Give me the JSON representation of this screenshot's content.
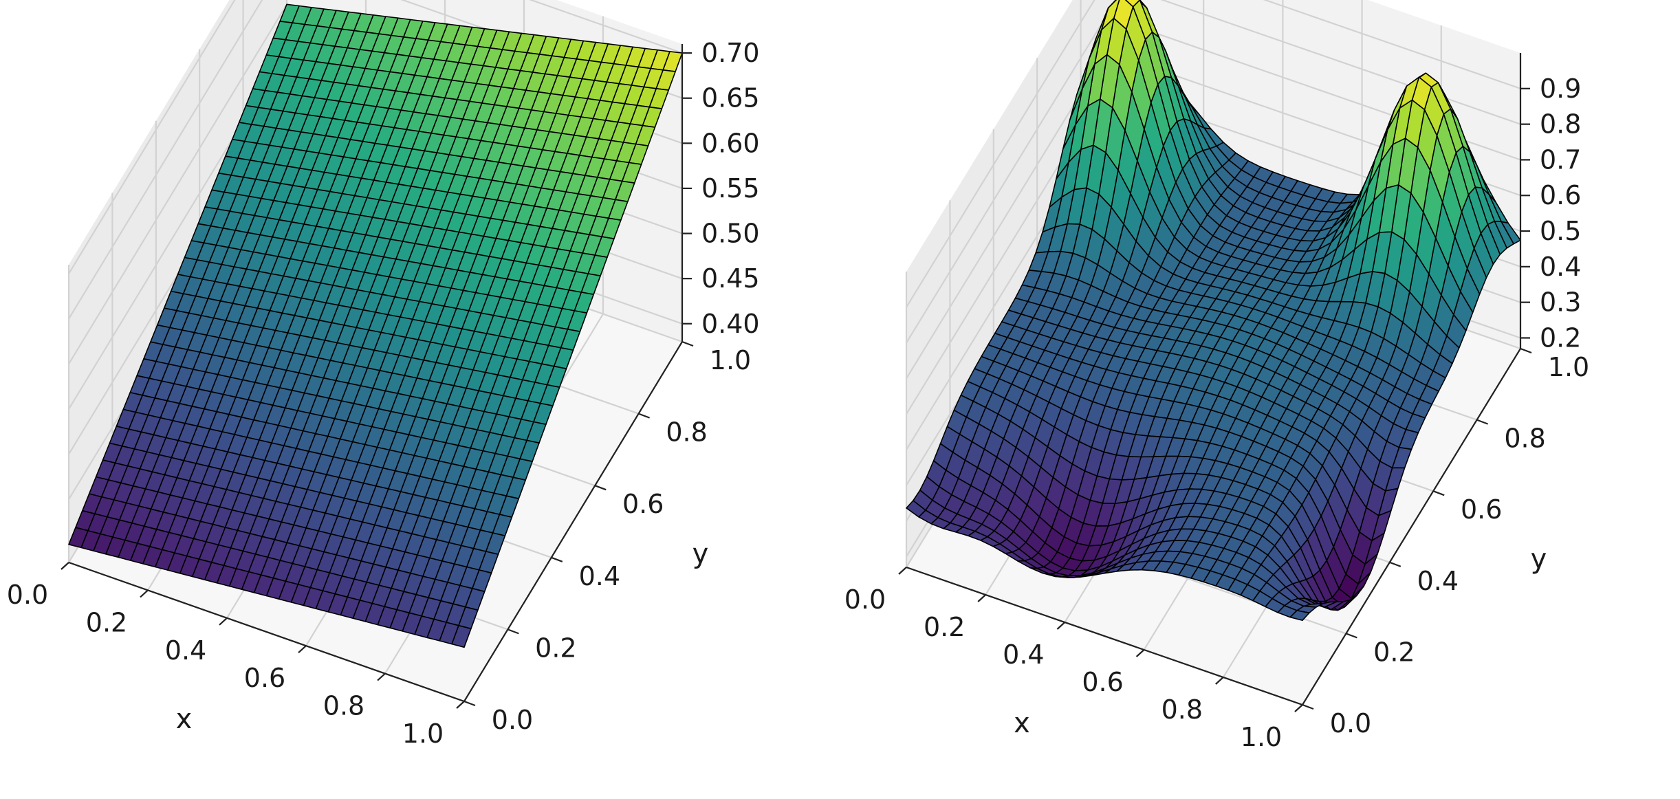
{
  "colors": {
    "pane_back": "#f2f2f2",
    "pane_side": "#ebebeb",
    "pane_floor": "#f7f7f7",
    "grid": "#d2d2d2",
    "axis": "#222222",
    "wire": "#000000",
    "colormap": "viridis"
  },
  "chart_data": [
    {
      "type": "surface",
      "xlabel": "x",
      "ylabel": "y",
      "zlabel": "",
      "xlim": [
        0,
        1
      ],
      "ylim": [
        0,
        1
      ],
      "zlim": [
        0.38,
        0.71
      ],
      "x_ticks": [
        "0.0",
        "0.2",
        "0.4",
        "0.6",
        "0.8",
        "1.0"
      ],
      "y_ticks": [
        "0.0",
        "0.2",
        "0.4",
        "0.6",
        "0.8",
        "1.0"
      ],
      "z_ticks": [
        "0.40",
        "0.45",
        "0.50",
        "0.55",
        "0.60",
        "0.65",
        "0.70"
      ],
      "corner_values": {
        "x0y0": 0.4,
        "x1y0": 0.44,
        "x0y1": 0.6,
        "x1y1": 0.7
      },
      "grid": true
    },
    {
      "type": "surface",
      "xlabel": "x",
      "ylabel": "y",
      "zlabel": "",
      "xlim": [
        0,
        1
      ],
      "ylim": [
        0,
        1
      ],
      "zlim": [
        0.17,
        1.0
      ],
      "x_ticks": [
        "0.0",
        "0.2",
        "0.4",
        "0.6",
        "0.8",
        "1.0"
      ],
      "y_ticks": [
        "0.0",
        "0.2",
        "0.4",
        "0.6",
        "0.8",
        "1.0"
      ],
      "z_ticks": [
        "0.2",
        "0.3",
        "0.4",
        "0.5",
        "0.6",
        "0.7",
        "0.8",
        "0.9"
      ],
      "peaks": [
        {
          "x": 0.1,
          "y": 0.8,
          "z": 1.0
        },
        {
          "x": 0.8,
          "y": 0.85,
          "z": 0.98
        }
      ],
      "valleys": [
        {
          "x": 0.35,
          "y": 0.15,
          "z": 0.2
        },
        {
          "x": 0.95,
          "y": 0.3,
          "z": 0.17
        }
      ],
      "grid": true
    }
  ]
}
